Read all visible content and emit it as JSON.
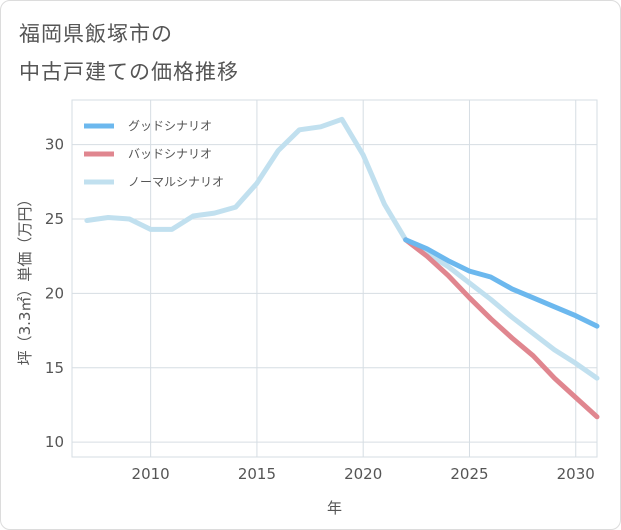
{
  "title_lines": [
    "福岡県飯塚市の",
    "中古戸建ての価格推移"
  ],
  "chart_data": {
    "type": "line",
    "xlabel": "年",
    "ylabel": "坪（3.3㎡）単価（万円）",
    "xlim": [
      2006.3,
      2031
    ],
    "ylim": [
      9,
      33
    ],
    "xticks": [
      2010,
      2015,
      2020,
      2025,
      2030
    ],
    "yticks": [
      10,
      15,
      20,
      25,
      30
    ],
    "grid": true,
    "legend_position": "top-left",
    "series": [
      {
        "name": "グッドシナリオ",
        "color": "#6cb8ee",
        "x": [
          2022,
          2023,
          2024,
          2025,
          2026,
          2027,
          2028,
          2029,
          2030,
          2031
        ],
        "y": [
          23.6,
          23.0,
          22.2,
          21.5,
          21.1,
          20.3,
          19.7,
          19.1,
          18.5,
          17.8
        ]
      },
      {
        "name": "バッドシナリオ",
        "color": "#e0868f",
        "x": [
          2022,
          2023,
          2024,
          2025,
          2026,
          2027,
          2028,
          2029,
          2030,
          2031
        ],
        "y": [
          23.6,
          22.5,
          21.2,
          19.7,
          18.3,
          17.0,
          15.8,
          14.3,
          13.0,
          11.7
        ]
      },
      {
        "name": "ノーマルシナリオ",
        "color": "#c1e0ef",
        "x": [
          2007,
          2008,
          2009,
          2010,
          2011,
          2012,
          2013,
          2014,
          2015,
          2016,
          2017,
          2018,
          2019,
          2020,
          2021,
          2022,
          2023,
          2024,
          2025,
          2026,
          2027,
          2028,
          2029,
          2030,
          2031
        ],
        "y": [
          24.9,
          25.1,
          25.0,
          24.3,
          24.3,
          25.2,
          25.4,
          25.8,
          27.4,
          29.6,
          31.0,
          31.2,
          31.7,
          29.3,
          26.0,
          23.6,
          22.7,
          21.8,
          20.7,
          19.6,
          18.4,
          17.3,
          16.2,
          15.3,
          14.3
        ]
      }
    ]
  }
}
